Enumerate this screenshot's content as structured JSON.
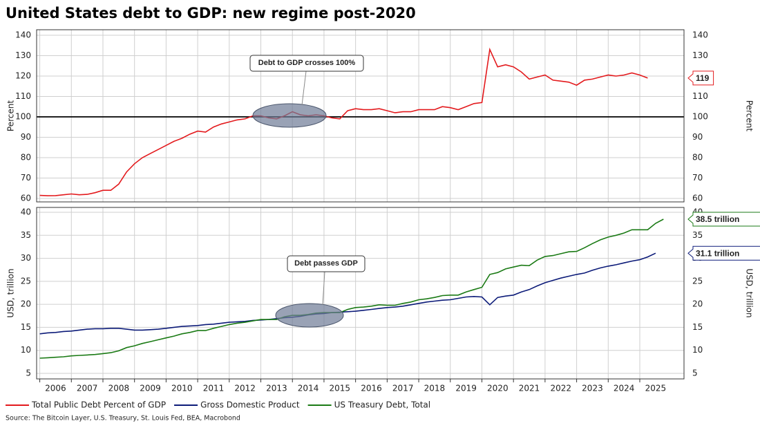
{
  "chart_data": {
    "type": "line",
    "title": "United States debt to GDP: new regime post-2020",
    "source": "Source: The Bitcoin Layer, U.S. Treasury, St. Louis Fed, BEA, Macrobond",
    "xlim": [
      2005.9,
      2026.4
    ],
    "xticks": [
      2006,
      2007,
      2008,
      2009,
      2010,
      2011,
      2012,
      2013,
      2014,
      2015,
      2016,
      2017,
      2018,
      2019,
      2020,
      2021,
      2022,
      2023,
      2024,
      2025
    ],
    "x": [
      2006,
      2006.25,
      2006.5,
      2006.75,
      2007,
      2007.25,
      2007.5,
      2007.75,
      2008,
      2008.25,
      2008.5,
      2008.75,
      2009,
      2009.25,
      2009.5,
      2009.75,
      2010,
      2010.25,
      2010.5,
      2010.75,
      2011,
      2011.25,
      2011.5,
      2011.75,
      2012,
      2012.25,
      2012.5,
      2012.75,
      2013,
      2013.25,
      2013.5,
      2013.75,
      2014,
      2014.25,
      2014.5,
      2014.75,
      2015,
      2015.25,
      2015.5,
      2015.75,
      2016,
      2016.25,
      2016.5,
      2016.75,
      2017,
      2017.25,
      2017.5,
      2017.75,
      2018,
      2018.25,
      2018.5,
      2018.75,
      2019,
      2019.25,
      2019.5,
      2019.75,
      2020,
      2020.25,
      2020.5,
      2020.75,
      2021,
      2021.25,
      2021.5,
      2021.75,
      2022,
      2022.25,
      2022.5,
      2022.75,
      2023,
      2023.25,
      2023.5,
      2023.75,
      2024,
      2024.25,
      2024.5,
      2024.75,
      2025,
      2025.25,
      2025.5,
      2025.75
    ],
    "panels": [
      {
        "ylabel": "Percent",
        "ylim": [
          58.3,
          142.7
        ],
        "yticks": [
          60,
          70,
          80,
          90,
          100,
          110,
          120,
          130,
          140
        ],
        "hline": 100,
        "annotation": "Debt to GDP crosses 100%",
        "series": [
          {
            "name": "Total Public Debt Percent of GDP",
            "color": "#e3191c",
            "end_label": "119",
            "values": [
              61.5,
              61.3,
              61.4,
              61.8,
              62.2,
              61.8,
              62.0,
              62.8,
              64.0,
              64.0,
              67.0,
              73.0,
              77.0,
              80.0,
              82.0,
              84.0,
              86.0,
              88.0,
              89.5,
              91.5,
              93.0,
              92.5,
              95.0,
              96.5,
              97.5,
              98.5,
              99.0,
              100.5,
              100.5,
              99.5,
              99.0,
              100.5,
              102.5,
              101.0,
              100.5,
              101.0,
              100.5,
              99.5,
              99.0,
              103.0,
              104.0,
              103.5,
              103.5,
              104.0,
              103.0,
              102.0,
              102.5,
              102.5,
              103.5,
              103.5,
              103.5,
              105.0,
              104.5,
              103.5,
              105.0,
              106.5,
              107.0,
              133.0,
              124.5,
              125.5,
              124.5,
              122.0,
              118.5,
              119.5,
              120.5,
              118.0,
              117.5,
              117.0,
              115.5,
              118.0,
              118.5,
              119.5,
              120.5,
              120.0,
              120.5,
              121.5,
              120.5,
              119.0,
              null,
              null
            ]
          }
        ]
      },
      {
        "ylabel": "USD, trillion",
        "ylim": [
          3.8,
          41.05
        ],
        "yticks": [
          5,
          10,
          15,
          20,
          25,
          30,
          35,
          40
        ],
        "annotation": "Debt passes GDP",
        "series": [
          {
            "name": "Gross Domestic Product",
            "color": "#0b1a78",
            "end_label": "31.1 trillion",
            "values": [
              13.6,
              13.8,
              13.9,
              14.1,
              14.2,
              14.4,
              14.6,
              14.7,
              14.7,
              14.8,
              14.8,
              14.6,
              14.4,
              14.4,
              14.5,
              14.6,
              14.8,
              15.0,
              15.2,
              15.3,
              15.4,
              15.6,
              15.7,
              15.9,
              16.1,
              16.2,
              16.3,
              16.5,
              16.6,
              16.7,
              16.9,
              17.1,
              17.2,
              17.4,
              17.7,
              17.9,
              18.0,
              18.2,
              18.3,
              18.4,
              18.5,
              18.7,
              18.9,
              19.1,
              19.3,
              19.4,
              19.6,
              19.9,
              20.2,
              20.5,
              20.7,
              20.9,
              21.0,
              21.3,
              21.6,
              21.7,
              21.6,
              19.9,
              21.5,
              21.8,
              22.0,
              22.7,
              23.2,
              24.0,
              24.7,
              25.2,
              25.7,
              26.1,
              26.5,
              26.8,
              27.4,
              27.9,
              28.3,
              28.6,
              29.0,
              29.4,
              29.7,
              30.3,
              31.1,
              null
            ]
          },
          {
            "name": "US Treasury Debt, Total",
            "color": "#1a7a14",
            "end_label": "38.5 trillion",
            "values": [
              8.3,
              8.4,
              8.5,
              8.6,
              8.8,
              8.9,
              9.0,
              9.1,
              9.3,
              9.5,
              9.9,
              10.6,
              11.0,
              11.5,
              11.9,
              12.3,
              12.7,
              13.1,
              13.6,
              13.9,
              14.3,
              14.3,
              14.8,
              15.2,
              15.6,
              15.9,
              16.1,
              16.4,
              16.7,
              16.7,
              16.7,
              17.3,
              17.6,
              17.6,
              17.8,
              18.1,
              18.2,
              18.2,
              18.2,
              18.9,
              19.3,
              19.4,
              19.6,
              19.9,
              19.8,
              19.8,
              20.2,
              20.5,
              21.0,
              21.2,
              21.5,
              21.9,
              22.0,
              22.0,
              22.7,
              23.2,
              23.7,
              26.5,
              26.9,
              27.7,
              28.1,
              28.5,
              28.4,
              29.6,
              30.4,
              30.6,
              31.0,
              31.4,
              31.5,
              32.3,
              33.2,
              34.0,
              34.6,
              35.0,
              35.5,
              36.2,
              36.2,
              36.2,
              37.6,
              38.5
            ]
          }
        ]
      }
    ]
  }
}
